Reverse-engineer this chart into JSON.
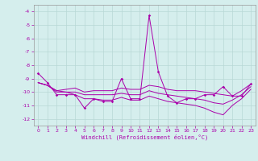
{
  "x": [
    0,
    1,
    2,
    3,
    4,
    5,
    6,
    7,
    8,
    9,
    10,
    11,
    12,
    13,
    14,
    15,
    16,
    17,
    18,
    19,
    20,
    21,
    22,
    23
  ],
  "line1": [
    -8.6,
    -9.3,
    -10.2,
    -10.2,
    -10.2,
    -11.2,
    -10.5,
    -10.7,
    -10.7,
    -9.0,
    -10.5,
    -10.5,
    -4.3,
    -8.5,
    -10.3,
    -10.8,
    -10.5,
    -10.5,
    -10.2,
    -10.2,
    -9.6,
    -10.3,
    -10.3,
    -9.4
  ],
  "line2_upper": [
    -9.3,
    -9.5,
    -9.9,
    -9.8,
    -9.7,
    -10.0,
    -9.9,
    -9.9,
    -9.9,
    -9.7,
    -9.8,
    -9.8,
    -9.5,
    -9.6,
    -9.8,
    -9.9,
    -9.9,
    -9.9,
    -10.0,
    -10.1,
    -10.2,
    -10.3,
    -9.9,
    -9.4
  ],
  "line2_lower": [
    -9.3,
    -9.5,
    -10.0,
    -10.0,
    -10.2,
    -10.5,
    -10.5,
    -10.6,
    -10.6,
    -10.4,
    -10.6,
    -10.6,
    -10.3,
    -10.5,
    -10.7,
    -10.8,
    -10.9,
    -11.0,
    -11.2,
    -11.5,
    -11.7,
    -11.0,
    -10.5,
    -9.8
  ],
  "line_middle": [
    -9.3,
    -9.5,
    -9.9,
    -10.0,
    -10.0,
    -10.2,
    -10.2,
    -10.2,
    -10.2,
    -10.1,
    -10.2,
    -10.2,
    -9.9,
    -10.1,
    -10.2,
    -10.3,
    -10.4,
    -10.5,
    -10.6,
    -10.8,
    -10.9,
    -10.6,
    -10.2,
    -9.6
  ],
  "bg_color": "#d5eeed",
  "grid_color": "#b8d8d6",
  "line_color": "#aa00aa",
  "xlabel": "Windchill (Refroidissement éolien,°C)",
  "ylim": [
    -12.5,
    -3.5
  ],
  "xlim": [
    -0.5,
    23.5
  ],
  "yticks": [
    -4,
    -5,
    -6,
    -7,
    -8,
    -9,
    -10,
    -11,
    -12
  ],
  "xticks": [
    0,
    1,
    2,
    3,
    4,
    5,
    6,
    7,
    8,
    9,
    10,
    11,
    12,
    13,
    14,
    15,
    16,
    17,
    18,
    19,
    20,
    21,
    22,
    23
  ]
}
